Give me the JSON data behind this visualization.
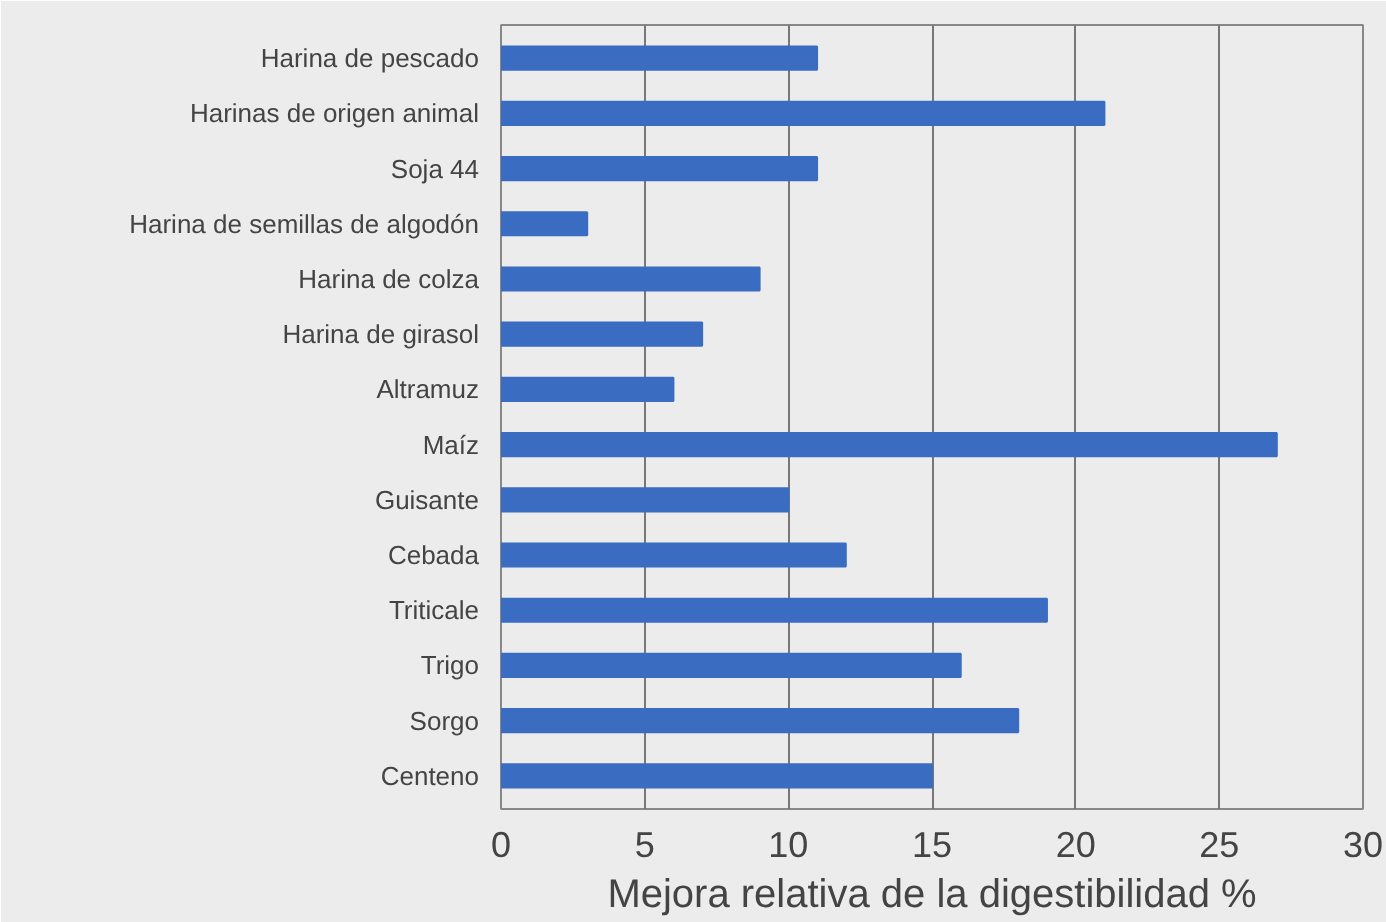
{
  "chart_data": {
    "type": "bar",
    "orientation": "horizontal",
    "xlabel": "Mejora relativa de la digestibilidad %",
    "categories": [
      "Harina de pescado",
      "Harinas de origen animal",
      "Soja 44",
      "Harina de semillas de algodón",
      "Harina de colza",
      "Harina de girasol",
      "Altramuz",
      "Maíz",
      "Guisante",
      "Cebada",
      "Triticale",
      "Trigo",
      "Sorgo",
      "Centeno"
    ],
    "values": [
      11,
      21,
      11,
      3,
      9,
      7,
      6,
      27,
      10,
      12,
      19,
      16,
      18,
      15
    ],
    "color": "#3a6cc2",
    "xlim": [
      0,
      30
    ],
    "xticks": [
      0,
      5,
      10,
      15,
      20,
      25,
      30
    ],
    "grid": "x"
  }
}
